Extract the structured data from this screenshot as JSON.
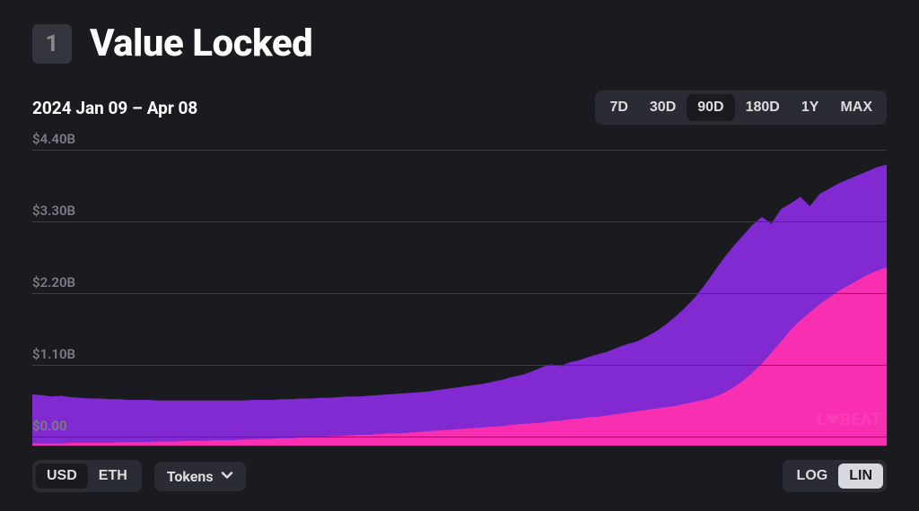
{
  "header": {
    "badge": "1",
    "title": "Value Locked"
  },
  "date_range": "2024 Jan 09 – Apr 08",
  "range_picker": {
    "options": [
      "7D",
      "30D",
      "90D",
      "180D",
      "1Y",
      "MAX"
    ],
    "active": "90D"
  },
  "chart": {
    "type": "stacked-area",
    "background_color": "#1a1b1f",
    "grid_color": "#3b3d45",
    "ylabel_color": "#7a7c85",
    "ylabel_fontsize": 15,
    "ylim": [
      0,
      4.4
    ],
    "yticks": [
      {
        "v": 0.0,
        "label": "$0.00"
      },
      {
        "v": 1.1,
        "label": "$1.10B"
      },
      {
        "v": 2.2,
        "label": "$2.20B"
      },
      {
        "v": 3.3,
        "label": "$3.30B"
      },
      {
        "v": 4.4,
        "label": "$4.40B"
      }
    ],
    "n_points": 90,
    "series": [
      {
        "name": "lower",
        "color": "#ff2fb0",
        "opacity": 0.95,
        "data": [
          0.03,
          0.03,
          0.03,
          0.03,
          0.04,
          0.04,
          0.04,
          0.04,
          0.04,
          0.05,
          0.05,
          0.05,
          0.05,
          0.06,
          0.06,
          0.06,
          0.07,
          0.07,
          0.07,
          0.08,
          0.08,
          0.08,
          0.09,
          0.09,
          0.1,
          0.1,
          0.11,
          0.11,
          0.12,
          0.12,
          0.13,
          0.14,
          0.14,
          0.15,
          0.16,
          0.16,
          0.17,
          0.18,
          0.18,
          0.19,
          0.2,
          0.21,
          0.22,
          0.23,
          0.24,
          0.25,
          0.26,
          0.27,
          0.28,
          0.29,
          0.31,
          0.32,
          0.33,
          0.34,
          0.36,
          0.37,
          0.39,
          0.4,
          0.42,
          0.43,
          0.45,
          0.47,
          0.49,
          0.51,
          0.53,
          0.55,
          0.57,
          0.59,
          0.62,
          0.65,
          0.68,
          0.72,
          0.78,
          0.86,
          0.96,
          1.08,
          1.22,
          1.38,
          1.55,
          1.72,
          1.86,
          1.98,
          2.1,
          2.2,
          2.3,
          2.38,
          2.46,
          2.54,
          2.6,
          2.65
        ]
      },
      {
        "name": "upper",
        "color": "#8a2be2",
        "opacity": 0.92,
        "data": [
          0.76,
          0.75,
          0.73,
          0.74,
          0.72,
          0.71,
          0.7,
          0.7,
          0.69,
          0.69,
          0.68,
          0.68,
          0.68,
          0.67,
          0.67,
          0.67,
          0.67,
          0.67,
          0.67,
          0.67,
          0.67,
          0.67,
          0.67,
          0.68,
          0.68,
          0.68,
          0.69,
          0.69,
          0.7,
          0.7,
          0.71,
          0.71,
          0.72,
          0.73,
          0.73,
          0.74,
          0.75,
          0.76,
          0.77,
          0.78,
          0.79,
          0.8,
          0.82,
          0.84,
          0.86,
          0.88,
          0.9,
          0.92,
          0.95,
          0.98,
          1.02,
          1.05,
          1.1,
          1.16,
          1.21,
          1.18,
          1.24,
          1.27,
          1.32,
          1.36,
          1.4,
          1.46,
          1.51,
          1.55,
          1.62,
          1.7,
          1.8,
          1.92,
          2.05,
          2.2,
          2.38,
          2.58,
          2.78,
          2.96,
          3.12,
          3.28,
          3.4,
          3.3,
          3.52,
          3.6,
          3.7,
          3.56,
          3.74,
          3.82,
          3.9,
          3.96,
          4.02,
          4.08,
          4.14,
          4.18
        ]
      }
    ]
  },
  "currency_toggle": {
    "options": [
      "USD",
      "ETH"
    ],
    "active": "USD"
  },
  "tokens_dropdown": {
    "label": "Tokens"
  },
  "scale_toggle": {
    "options": [
      "LOG",
      "LIN"
    ],
    "active": "LIN"
  },
  "watermark": {
    "prefix": "L",
    "heart": "❤",
    "suffix": "BEAT"
  }
}
